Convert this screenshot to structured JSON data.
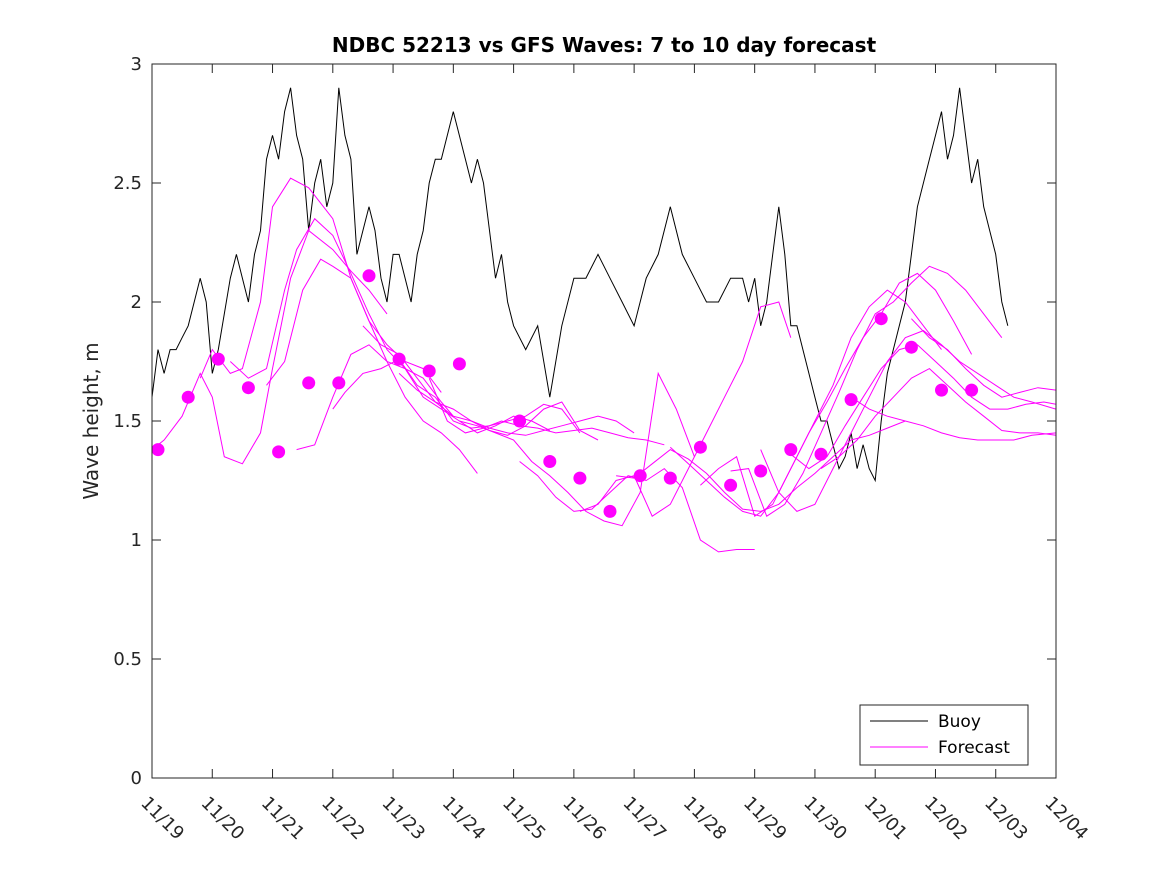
{
  "chart_data": {
    "type": "line",
    "title": "NDBC 52213 vs GFS Waves: 7 to 10 day forecast",
    "xlabel": "",
    "ylabel": "Wave height, m",
    "x_tick_labels": [
      "11/19",
      "11/20",
      "11/21",
      "11/22",
      "11/23",
      "11/24",
      "11/25",
      "11/26",
      "11/27",
      "11/28",
      "11/29",
      "11/30",
      "12/01",
      "12/02",
      "12/03",
      "12/04"
    ],
    "xlim_days": [
      0,
      15
    ],
    "ylim": [
      0,
      3
    ],
    "y_ticks": [
      0,
      0.5,
      1,
      1.5,
      2,
      2.5,
      3
    ],
    "y_tick_labels": [
      "0",
      "0.5",
      "1",
      "1.5",
      "2",
      "2.5",
      "3"
    ],
    "legend": {
      "position": "bottom-right",
      "entries": [
        "Buoy",
        "Forecast"
      ]
    },
    "colors": {
      "buoy": "#000000",
      "forecast": "#ff00ff"
    },
    "buoy": {
      "name": "Buoy",
      "x": [
        0,
        0.1,
        0.2,
        0.3,
        0.4,
        0.5,
        0.6,
        0.8,
        0.9,
        1.0,
        1.1,
        1.3,
        1.4,
        1.5,
        1.6,
        1.7,
        1.8,
        1.9,
        2.0,
        2.1,
        2.2,
        2.3,
        2.4,
        2.5,
        2.6,
        2.7,
        2.8,
        2.9,
        3.0,
        3.1,
        3.2,
        3.3,
        3.4,
        3.5,
        3.6,
        3.7,
        3.8,
        3.9,
        4.0,
        4.1,
        4.2,
        4.3,
        4.4,
        4.5,
        4.6,
        4.7,
        4.8,
        4.9,
        5.0,
        5.2,
        5.3,
        5.4,
        5.5,
        5.6,
        5.7,
        5.8,
        5.9,
        6.0,
        6.2,
        6.4,
        6.6,
        6.8,
        7.0,
        7.2,
        7.4,
        7.6,
        7.8,
        8.0,
        8.2,
        8.4,
        8.6,
        8.8,
        9.0,
        9.2,
        9.4,
        9.6,
        9.8,
        9.9,
        10.0,
        10.1,
        10.2,
        10.3,
        10.4,
        10.5,
        10.6,
        10.7,
        10.8,
        10.9,
        11.0,
        11.1,
        11.2,
        11.3,
        11.4,
        11.5,
        11.6,
        11.7,
        11.8,
        11.9,
        12.0,
        12.1,
        12.2,
        12.3,
        12.4,
        12.5,
        12.6,
        12.7,
        12.8,
        12.9,
        13.0,
        13.1,
        13.2,
        13.3,
        13.4,
        13.5,
        13.6,
        13.7,
        13.8,
        13.9,
        14.0,
        14.1,
        14.2
      ],
      "y": [
        1.6,
        1.8,
        1.7,
        1.8,
        1.8,
        1.85,
        1.9,
        2.1,
        2.0,
        1.7,
        1.8,
        2.1,
        2.2,
        2.1,
        2.0,
        2.2,
        2.3,
        2.6,
        2.7,
        2.6,
        2.8,
        2.9,
        2.7,
        2.6,
        2.3,
        2.5,
        2.6,
        2.4,
        2.5,
        2.9,
        2.7,
        2.6,
        2.2,
        2.3,
        2.4,
        2.3,
        2.1,
        2.0,
        2.2,
        2.2,
        2.1,
        2.0,
        2.2,
        2.3,
        2.5,
        2.6,
        2.6,
        2.7,
        2.8,
        2.6,
        2.5,
        2.6,
        2.5,
        2.3,
        2.1,
        2.2,
        2.0,
        1.9,
        1.8,
        1.9,
        1.6,
        1.9,
        2.1,
        2.1,
        2.2,
        2.1,
        2.0,
        1.9,
        2.1,
        2.2,
        2.4,
        2.2,
        2.1,
        2.0,
        2.0,
        2.1,
        2.1,
        2.0,
        2.1,
        1.9,
        2.0,
        2.2,
        2.4,
        2.2,
        1.9,
        1.9,
        1.8,
        1.7,
        1.6,
        1.5,
        1.5,
        1.4,
        1.3,
        1.35,
        1.45,
        1.3,
        1.4,
        1.3,
        1.25,
        1.5,
        1.7,
        1.8,
        1.9,
        2.0,
        2.2,
        2.4,
        2.5,
        2.6,
        2.7,
        2.8,
        2.6,
        2.7,
        2.9,
        2.7,
        2.5,
        2.6,
        2.4,
        2.3,
        2.2,
        2.0,
        1.9
      ]
    },
    "forecast_series": [
      {
        "name": "Forecast",
        "x": [
          0,
          0.2,
          0.5,
          0.8,
          1.0,
          1.2,
          1.5,
          1.8,
          2.0,
          2.3,
          2.6,
          3.0,
          3.3,
          3.6,
          3.9
        ],
        "y": [
          1.38,
          1.42,
          1.52,
          1.7,
          1.6,
          1.35,
          1.32,
          1.45,
          1.72,
          2.1,
          2.3,
          2.22,
          2.13,
          2.05,
          1.95
        ]
      },
      {
        "name": "Forecast",
        "x": [
          0.8,
          1.0,
          1.3,
          1.5,
          1.8,
          2.0,
          2.3,
          2.6,
          3.0,
          3.3,
          3.6,
          3.9,
          4.2,
          4.5,
          4.8
        ],
        "y": [
          1.68,
          1.8,
          1.7,
          1.72,
          2.0,
          2.4,
          2.52,
          2.48,
          2.35,
          2.1,
          1.92,
          1.82,
          1.75,
          1.72,
          1.62
        ]
      },
      {
        "name": "Forecast",
        "x": [
          1.3,
          1.6,
          1.9,
          2.2,
          2.4,
          2.7,
          3.0,
          3.3,
          3.6,
          3.9,
          4.2,
          4.5,
          4.8,
          5.0
        ],
        "y": [
          1.75,
          1.68,
          1.72,
          2.05,
          2.22,
          2.35,
          2.28,
          2.12,
          1.95,
          1.8,
          1.72,
          1.68,
          1.58,
          1.52
        ]
      },
      {
        "name": "Forecast",
        "x": [
          1.9,
          2.2,
          2.5,
          2.8,
          3.0,
          3.3,
          3.6,
          3.9,
          4.2,
          4.5,
          4.8,
          5.1,
          5.4
        ],
        "y": [
          1.65,
          1.75,
          2.05,
          2.18,
          2.15,
          2.1,
          1.92,
          1.75,
          1.6,
          1.5,
          1.45,
          1.38,
          1.28
        ]
      },
      {
        "name": "Forecast",
        "x": [
          2.4,
          2.7,
          3.0,
          3.3,
          3.6,
          3.9,
          4.2,
          4.5,
          4.8,
          5.1,
          5.4,
          5.7,
          6.0,
          6.3,
          6.6
        ],
        "y": [
          1.38,
          1.4,
          1.6,
          1.78,
          1.82,
          1.75,
          1.72,
          1.6,
          1.55,
          1.5,
          1.45,
          1.48,
          1.52,
          1.5,
          1.46
        ]
      },
      {
        "name": "Forecast",
        "x": [
          3.0,
          3.2,
          3.5,
          3.8,
          4.1,
          4.4,
          4.7,
          5.0,
          5.3,
          5.6,
          5.9,
          6.2,
          6.5,
          6.8,
          7.1
        ],
        "y": [
          1.55,
          1.62,
          1.7,
          1.72,
          1.76,
          1.65,
          1.6,
          1.5,
          1.47,
          1.48,
          1.5,
          1.52,
          1.57,
          1.55,
          1.45
        ]
      },
      {
        "name": "Forecast",
        "x": [
          3.5,
          3.8,
          4.1,
          4.4,
          4.7,
          5.0,
          5.3,
          5.6,
          5.9,
          6.2,
          6.5,
          6.8,
          7.1,
          7.4
        ],
        "y": [
          1.9,
          1.82,
          1.78,
          1.68,
          1.58,
          1.52,
          1.5,
          1.46,
          1.44,
          1.48,
          1.55,
          1.58,
          1.46,
          1.42
        ]
      },
      {
        "name": "Forecast",
        "x": [
          4.1,
          4.4,
          4.7,
          5.0,
          5.3,
          5.6,
          5.9,
          6.2,
          6.5,
          6.8,
          7.1,
          7.4,
          7.7,
          8.0
        ],
        "y": [
          1.7,
          1.63,
          1.58,
          1.55,
          1.5,
          1.47,
          1.45,
          1.44,
          1.46,
          1.48,
          1.5,
          1.52,
          1.5,
          1.45
        ]
      },
      {
        "name": "Forecast",
        "x": [
          4.6,
          4.9,
          5.2,
          5.5,
          5.8,
          6.1,
          6.4,
          6.7,
          7.0,
          7.3,
          7.6,
          7.9,
          8.2,
          8.5
        ],
        "y": [
          1.68,
          1.5,
          1.45,
          1.47,
          1.5,
          1.48,
          1.47,
          1.45,
          1.46,
          1.47,
          1.45,
          1.43,
          1.42,
          1.4
        ]
      },
      {
        "name": "Forecast",
        "x": [
          5.1,
          5.4,
          5.7,
          6.0,
          6.3,
          6.6,
          6.9,
          7.2,
          7.5,
          7.8,
          8.1,
          8.4,
          8.7,
          9.0
        ],
        "y": [
          1.5,
          1.48,
          1.45,
          1.42,
          1.33,
          1.27,
          1.2,
          1.12,
          1.08,
          1.06,
          1.2,
          1.7,
          1.55,
          1.35
        ]
      },
      {
        "name": "Forecast",
        "x": [
          6.1,
          6.4,
          6.7,
          7.0,
          7.3,
          7.6,
          7.9,
          8.2,
          8.5,
          8.8,
          9.1,
          9.4,
          9.7,
          10.0
        ],
        "y": [
          1.33,
          1.27,
          1.18,
          1.12,
          1.13,
          1.2,
          1.27,
          1.25,
          1.3,
          1.22,
          1.0,
          0.95,
          0.96,
          0.96
        ]
      },
      {
        "name": "Forecast",
        "x": [
          7.1,
          7.4,
          7.7,
          8.0,
          8.3,
          8.6,
          8.9,
          9.2,
          9.5,
          9.8,
          10.1,
          10.4,
          10.6
        ],
        "y": [
          1.12,
          1.15,
          1.25,
          1.27,
          1.1,
          1.15,
          1.3,
          1.45,
          1.6,
          1.75,
          1.98,
          2.0,
          1.85
        ]
      },
      {
        "name": "Forecast",
        "x": [
          7.7,
          8.0,
          8.3,
          8.6,
          8.9,
          9.2,
          9.5,
          9.8,
          10.1,
          10.4,
          10.7,
          11.0,
          11.3,
          11.6,
          11.9,
          12.2,
          12.5
        ],
        "y": [
          1.27,
          1.26,
          1.32,
          1.38,
          1.34,
          1.28,
          1.2,
          1.13,
          1.12,
          1.15,
          1.22,
          1.28,
          1.35,
          1.42,
          1.44,
          1.47,
          1.5
        ]
      },
      {
        "name": "Forecast",
        "x": [
          8.6,
          8.9,
          9.2,
          9.5,
          9.8,
          10.1,
          10.4,
          10.7,
          11.0,
          11.3,
          11.6,
          11.9,
          12.2,
          12.5,
          12.8,
          13.1
        ],
        "y": [
          1.39,
          1.32,
          1.25,
          1.18,
          1.12,
          1.1,
          1.2,
          1.35,
          1.5,
          1.65,
          1.85,
          1.98,
          2.05,
          2.0,
          1.9,
          1.8
        ]
      },
      {
        "name": "Forecast",
        "x": [
          9.1,
          9.4,
          9.7,
          10.0,
          10.3,
          10.6,
          10.9,
          11.2,
          11.5,
          11.8,
          12.1,
          12.4,
          12.7,
          13.0,
          13.3,
          13.6
        ],
        "y": [
          1.23,
          1.3,
          1.35,
          1.1,
          1.15,
          1.3,
          1.45,
          1.58,
          1.72,
          1.85,
          1.95,
          2.08,
          2.12,
          2.05,
          1.92,
          1.78
        ]
      },
      {
        "name": "Forecast",
        "x": [
          9.6,
          9.9,
          10.2,
          10.5,
          10.8,
          11.1,
          11.4,
          11.7,
          12.0,
          12.3,
          12.6,
          12.9,
          13.2,
          13.5,
          13.8,
          14.1
        ],
        "y": [
          1.29,
          1.3,
          1.1,
          1.15,
          1.28,
          1.45,
          1.62,
          1.8,
          1.95,
          2.0,
          2.08,
          2.15,
          2.12,
          2.05,
          1.95,
          1.85
        ]
      },
      {
        "name": "Forecast",
        "x": [
          10.1,
          10.4,
          10.7,
          11.0,
          11.3,
          11.6,
          11.9,
          12.2,
          12.5,
          12.8,
          13.1,
          13.4,
          13.7,
          14.0,
          14.3,
          14.6,
          15.0
        ],
        "y": [
          1.38,
          1.2,
          1.12,
          1.15,
          1.3,
          1.45,
          1.6,
          1.75,
          1.85,
          1.88,
          1.82,
          1.75,
          1.7,
          1.65,
          1.6,
          1.58,
          1.55
        ]
      },
      {
        "name": "Forecast",
        "x": [
          10.6,
          10.9,
          11.2,
          11.5,
          11.8,
          12.1,
          12.4,
          12.7,
          13.0,
          13.3,
          13.6,
          13.9,
          14.2,
          14.5,
          14.8,
          15.0
        ],
        "y": [
          1.36,
          1.3,
          1.35,
          1.48,
          1.6,
          1.72,
          1.8,
          1.82,
          1.75,
          1.68,
          1.6,
          1.55,
          1.55,
          1.57,
          1.58,
          1.57
        ]
      },
      {
        "name": "Forecast",
        "x": [
          11.1,
          11.4,
          11.7,
          12.0,
          12.3,
          12.6,
          12.9,
          13.2,
          13.5,
          13.8,
          14.1,
          14.4,
          14.7,
          15.0
        ],
        "y": [
          1.3,
          1.35,
          1.42,
          1.52,
          1.6,
          1.68,
          1.72,
          1.65,
          1.58,
          1.52,
          1.46,
          1.45,
          1.45,
          1.44
        ]
      },
      {
        "name": "Forecast",
        "x": [
          11.6,
          11.9,
          12.2,
          12.5,
          12.8,
          13.1,
          13.4,
          13.7,
          14.0,
          14.3,
          14.6,
          15.0
        ],
        "y": [
          1.6,
          1.55,
          1.52,
          1.5,
          1.48,
          1.45,
          1.43,
          1.42,
          1.42,
          1.42,
          1.44,
          1.45
        ]
      },
      {
        "name": "Forecast",
        "x": [
          12.6,
          12.9,
          13.2,
          13.5,
          13.8,
          14.1,
          14.4,
          14.7,
          15.0
        ],
        "y": [
          1.93,
          1.85,
          1.8,
          1.72,
          1.65,
          1.6,
          1.62,
          1.64,
          1.63
        ]
      }
    ],
    "forecast_markers": {
      "x": [
        0.1,
        0.6,
        1.1,
        1.6,
        2.1,
        2.6,
        3.1,
        3.6,
        4.1,
        4.6,
        5.1,
        6.1,
        6.6,
        7.1,
        7.6,
        8.1,
        8.6,
        9.1,
        9.6,
        10.1,
        10.6,
        11.1,
        11.6,
        12.1,
        12.6,
        13.1,
        13.6
      ],
      "y": [
        1.38,
        1.6,
        1.76,
        1.64,
        1.37,
        1.66,
        1.66,
        2.11,
        1.76,
        1.71,
        1.74,
        1.5,
        1.33,
        1.26,
        1.12,
        1.27,
        1.26,
        1.39,
        1.23,
        1.29,
        1.38,
        1.36,
        1.59,
        1.93,
        1.81,
        1.63,
        1.63
      ]
    }
  }
}
